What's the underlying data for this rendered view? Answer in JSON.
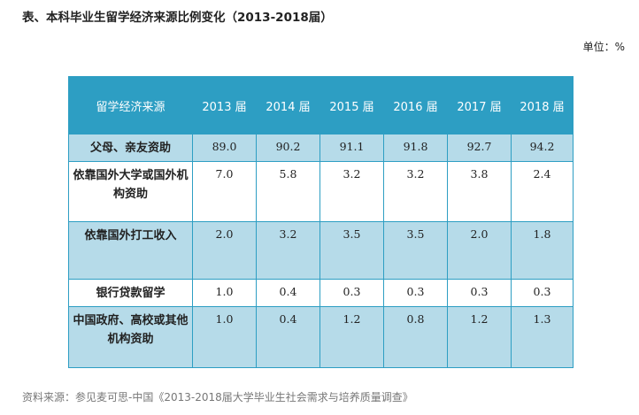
{
  "title": "表、本科毕业生留学经济来源比例变化（2013-2018届）",
  "unit": "单位：%",
  "table": {
    "header": [
      "留学经济来源",
      "2013 届",
      "2014 届",
      "2015 届",
      "2016 届",
      "2017 届",
      "2018 届"
    ],
    "rows": [
      {
        "label": "父母、亲友资助",
        "values": [
          "89.0",
          "90.2",
          "91.1",
          "91.8",
          "92.7",
          "94.2"
        ]
      },
      {
        "label": "依靠国外大学或国外机构资助",
        "values": [
          "7.0",
          "5.8",
          "3.2",
          "3.2",
          "3.8",
          "2.4"
        ]
      },
      {
        "label": "依靠国外打工收入",
        "values": [
          "2.0",
          "3.2",
          "3.5",
          "3.5",
          "2.0",
          "1.8"
        ]
      },
      {
        "label": "银行贷款留学",
        "values": [
          "1.0",
          "0.4",
          "0.3",
          "0.3",
          "0.3",
          "0.3"
        ]
      },
      {
        "label": "中国政府、高校或其他机构资助",
        "values": [
          "1.0",
          "0.4",
          "1.2",
          "0.8",
          "1.2",
          "1.3"
        ]
      }
    ]
  },
  "source": "资料来源：参见麦可思-中国《2013-2018届大学毕业生社会需求与培养质量调查》",
  "colors": {
    "header": "#2d9ec3",
    "band": "#b6dbe9"
  }
}
